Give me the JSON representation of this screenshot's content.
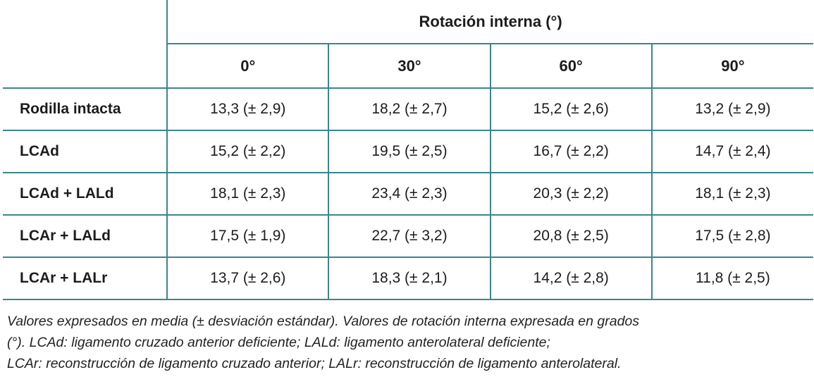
{
  "table": {
    "group_header": "Rotación interna (°)",
    "col_headers": [
      "0°",
      "30°",
      "60°",
      "90°"
    ],
    "rows": [
      {
        "label": "Rodilla intacta",
        "values": [
          "13,3 (± 2,9)",
          "18,2 (± 2,7)",
          "15,2 (± 2,6)",
          "13,2 (± 2,9)"
        ]
      },
      {
        "label": "LCAd",
        "values": [
          "15,2 (± 2,2)",
          "19,5 (± 2,5)",
          "16,7 (± 2,2)",
          "14,7 (± 2,4)"
        ]
      },
      {
        "label": "LCAd + LALd",
        "values": [
          "18,1 (± 2,3)",
          "23,4 (± 2,3)",
          "20,3 (± 2,2)",
          "18,1 (± 2,3)"
        ]
      },
      {
        "label": "LCAr + LALd",
        "values": [
          "17,5 (± 1,9)",
          "22,7 (± 3,2)",
          "20,8 (± 2,5)",
          "17,5 (± 2,8)"
        ]
      },
      {
        "label": "LCAr + LALr",
        "values": [
          "13,7 (± 2,6)",
          "18,3 (± 2,1)",
          "14,2 (± 2,8)",
          "11,8 (± 2,5)"
        ]
      }
    ],
    "footnote_lines": [
      "Valores expresados en media (± desviación estándar). Valores de rotación interna expresada en grados",
      "(°). LCAd: ligamento cruzado anterior deficiente; LALd: ligamento anterolateral deficiente;",
      "LCAr: reconstrucción de ligamento cruzado anterior; LALr: reconstrucción de ligamento anterolateral."
    ]
  },
  "colors": {
    "border": "#39868F",
    "text": "#1c1c1c"
  }
}
